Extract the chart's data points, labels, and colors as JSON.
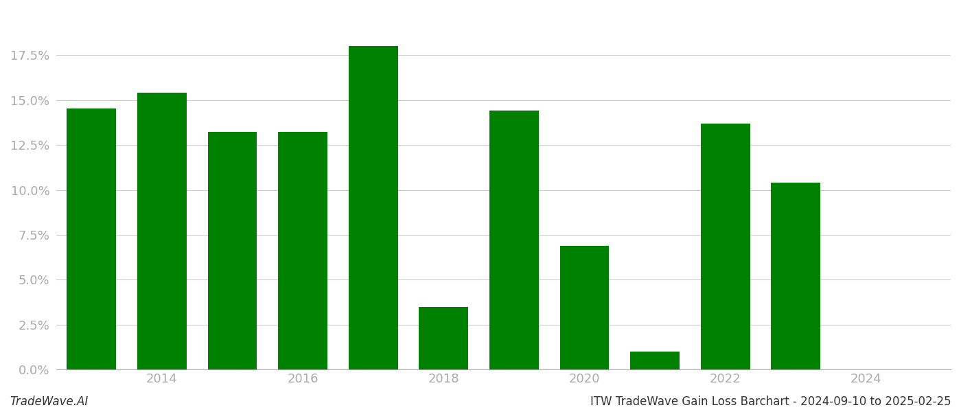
{
  "years": [
    2013,
    2014,
    2015,
    2016,
    2017,
    2018,
    2019,
    2020,
    2021,
    2022,
    2023,
    2024
  ],
  "values": [
    0.1455,
    0.154,
    0.1325,
    0.1325,
    0.18,
    0.035,
    0.144,
    0.069,
    0.01,
    0.137,
    0.104,
    0.0
  ],
  "bar_color": "#008000",
  "background_color": "#ffffff",
  "grid_color": "#cccccc",
  "axis_label_color": "#aaaaaa",
  "ylim": [
    0,
    0.2
  ],
  "yticks": [
    0.0,
    0.025,
    0.05,
    0.075,
    0.1,
    0.125,
    0.15,
    0.175
  ],
  "ytick_labels": [
    "0.0%",
    "2.5%",
    "5.0%",
    "7.5%",
    "10.0%",
    "12.5%",
    "15.0%",
    "17.5%"
  ],
  "xtick_positions": [
    2014,
    2016,
    2018,
    2020,
    2022,
    2024
  ],
  "xtick_labels": [
    "2014",
    "2016",
    "2018",
    "2020",
    "2022",
    "2024"
  ],
  "footer_left": "TradeWave.AI",
  "footer_right": "ITW TradeWave Gain Loss Barchart - 2024-09-10 to 2025-02-25",
  "bar_width": 0.7,
  "xlim": [
    2012.5,
    2025.2
  ]
}
